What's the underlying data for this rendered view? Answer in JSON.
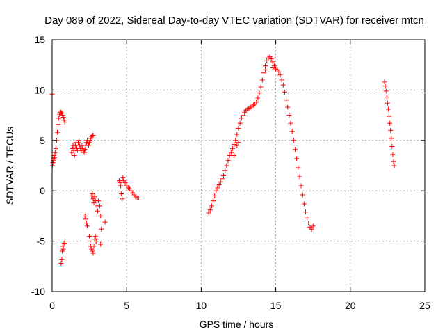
{
  "chart_data": {
    "type": "scatter",
    "title": "Day 089 of 2022, Sidereal Day-to-day VTEC variation (SDTVAR) for receiver mtcn",
    "xlabel": "GPS time / hours",
    "ylabel": "SDTVAR / TECUs",
    "xlim": [
      0,
      25
    ],
    "ylim": [
      -10,
      15
    ],
    "xticks": [
      0,
      5,
      10,
      15,
      20,
      25
    ],
    "yticks": [
      -10,
      -5,
      0,
      5,
      10,
      15
    ],
    "xtick_labels": [
      "0",
      "5",
      "10",
      "15",
      "20",
      "25"
    ],
    "ytick_labels": [
      "-10",
      "-5",
      "0",
      "5",
      "10",
      "15"
    ],
    "grid": true,
    "marker": "+",
    "color": "#ff0000",
    "series": [
      {
        "name": "SDTVAR",
        "points": [
          [
            0.0,
            9.6
          ],
          [
            0.02,
            2.5
          ],
          [
            0.05,
            2.8
          ],
          [
            0.08,
            3.0
          ],
          [
            0.1,
            3.2
          ],
          [
            0.13,
            3.5
          ],
          [
            0.16,
            3.3
          ],
          [
            0.2,
            3.8
          ],
          [
            0.25,
            4.2
          ],
          [
            0.3,
            5.0
          ],
          [
            0.35,
            5.8
          ],
          [
            0.4,
            6.6
          ],
          [
            0.45,
            7.2
          ],
          [
            0.5,
            7.6
          ],
          [
            0.55,
            7.8
          ],
          [
            0.6,
            7.8
          ],
          [
            0.65,
            7.7
          ],
          [
            0.7,
            7.5
          ],
          [
            0.75,
            7.3
          ],
          [
            0.8,
            7.0
          ],
          [
            0.85,
            6.8
          ],
          [
            0.6,
            -7.2
          ],
          [
            0.65,
            -6.8
          ],
          [
            0.68,
            -6.0
          ],
          [
            0.72,
            -5.5
          ],
          [
            0.75,
            -5.8
          ],
          [
            0.8,
            -5.2
          ],
          [
            0.85,
            -5.0
          ],
          [
            1.3,
            3.8
          ],
          [
            1.35,
            4.2
          ],
          [
            1.4,
            4.5
          ],
          [
            1.45,
            4.0
          ],
          [
            1.5,
            3.5
          ],
          [
            1.55,
            4.5
          ],
          [
            1.6,
            4.8
          ],
          [
            1.65,
            4.2
          ],
          [
            1.7,
            4.0
          ],
          [
            1.75,
            4.8
          ],
          [
            1.8,
            5.0
          ],
          [
            1.85,
            4.5
          ],
          [
            1.9,
            4.2
          ],
          [
            1.95,
            4.0
          ],
          [
            2.0,
            4.5
          ],
          [
            2.05,
            4.2
          ],
          [
            2.1,
            4.0
          ],
          [
            2.15,
            3.8
          ],
          [
            2.2,
            4.1
          ],
          [
            2.25,
            4.5
          ],
          [
            2.3,
            4.8
          ],
          [
            2.35,
            5.0
          ],
          [
            2.4,
            4.7
          ],
          [
            2.45,
            4.5
          ],
          [
            2.5,
            4.8
          ],
          [
            2.55,
            5.0
          ],
          [
            2.6,
            5.2
          ],
          [
            2.65,
            5.4
          ],
          [
            2.7,
            5.5
          ],
          [
            2.75,
            5.5
          ],
          [
            2.2,
            -2.5
          ],
          [
            2.25,
            -2.8
          ],
          [
            2.3,
            -3.2
          ],
          [
            2.35,
            -3.5
          ],
          [
            2.5,
            -4.5
          ],
          [
            2.55,
            -5.0
          ],
          [
            2.6,
            -5.5
          ],
          [
            2.65,
            -5.8
          ],
          [
            2.7,
            -6.0
          ],
          [
            2.75,
            -6.2
          ],
          [
            2.8,
            -5.5
          ],
          [
            2.85,
            -4.8
          ],
          [
            2.9,
            -4.5
          ],
          [
            2.95,
            -5.0
          ],
          [
            3.0,
            -4.8
          ],
          [
            2.65,
            -0.5
          ],
          [
            2.7,
            -0.3
          ],
          [
            2.75,
            -0.8
          ],
          [
            2.8,
            -1.2
          ],
          [
            2.85,
            -0.6
          ],
          [
            2.9,
            -1.0
          ],
          [
            3.0,
            -1.5
          ],
          [
            3.05,
            -2.0
          ],
          [
            3.1,
            -1.0
          ],
          [
            3.2,
            -1.5
          ],
          [
            3.25,
            -2.5
          ],
          [
            3.3,
            -3.8
          ],
          [
            3.25,
            -5.3
          ],
          [
            3.55,
            -3.1
          ],
          [
            4.5,
            1.0
          ],
          [
            4.55,
            0.8
          ],
          [
            4.6,
            0.5
          ],
          [
            4.65,
            -0.3
          ],
          [
            4.7,
            -0.8
          ],
          [
            4.75,
            1.3
          ],
          [
            4.8,
            1.0
          ],
          [
            4.9,
            0.8
          ],
          [
            5.0,
            0.5
          ],
          [
            5.1,
            0.3
          ],
          [
            5.2,
            0.2
          ],
          [
            5.3,
            0.0
          ],
          [
            5.4,
            -0.2
          ],
          [
            5.5,
            -0.4
          ],
          [
            5.6,
            -0.6
          ],
          [
            5.7,
            -0.7
          ],
          [
            5.8,
            -0.7
          ],
          [
            10.5,
            -2.2
          ],
          [
            10.6,
            -1.9
          ],
          [
            10.7,
            -1.5
          ],
          [
            10.8,
            -1.0
          ],
          [
            10.9,
            -0.5
          ],
          [
            11.0,
            0.0
          ],
          [
            11.1,
            0.3
          ],
          [
            11.2,
            0.6
          ],
          [
            11.3,
            0.9
          ],
          [
            11.4,
            1.2
          ],
          [
            11.5,
            1.5
          ],
          [
            11.6,
            2.0
          ],
          [
            11.7,
            2.5
          ],
          [
            11.8,
            3.0
          ],
          [
            11.9,
            3.5
          ],
          [
            12.0,
            3.8
          ],
          [
            12.1,
            4.2
          ],
          [
            12.2,
            4.6
          ],
          [
            12.3,
            5.0
          ],
          [
            12.4,
            5.6
          ],
          [
            12.5,
            6.2
          ],
          [
            12.6,
            6.7
          ],
          [
            12.7,
            7.2
          ],
          [
            12.8,
            7.5
          ],
          [
            12.9,
            7.8
          ],
          [
            13.0,
            8.0
          ],
          [
            13.1,
            8.1
          ],
          [
            13.2,
            8.2
          ],
          [
            13.3,
            8.3
          ],
          [
            13.4,
            8.4
          ],
          [
            13.5,
            8.5
          ],
          [
            13.6,
            8.6
          ],
          [
            13.7,
            8.8
          ],
          [
            13.8,
            9.2
          ],
          [
            13.9,
            9.7
          ],
          [
            14.0,
            10.3
          ],
          [
            14.1,
            11.0
          ],
          [
            14.2,
            11.7
          ],
          [
            14.3,
            12.4
          ],
          [
            14.4,
            12.9
          ],
          [
            14.5,
            13.2
          ],
          [
            14.6,
            13.3
          ],
          [
            14.7,
            13.1
          ],
          [
            14.8,
            12.8
          ],
          [
            14.9,
            12.4
          ],
          [
            15.0,
            12.1
          ],
          [
            15.1,
            12.0
          ],
          [
            15.2,
            11.8
          ],
          [
            15.3,
            11.5
          ],
          [
            15.4,
            11.0
          ],
          [
            15.5,
            10.5
          ],
          [
            15.6,
            9.8
          ],
          [
            15.7,
            9.0
          ],
          [
            15.8,
            8.3
          ],
          [
            15.9,
            7.5
          ],
          [
            16.0,
            6.7
          ],
          [
            16.1,
            5.9
          ],
          [
            16.2,
            5.0
          ],
          [
            16.3,
            4.1
          ],
          [
            16.4,
            3.2
          ],
          [
            16.5,
            2.3
          ],
          [
            16.6,
            1.4
          ],
          [
            16.7,
            0.5
          ],
          [
            16.8,
            -0.4
          ],
          [
            16.9,
            -1.3
          ],
          [
            17.0,
            -2.1
          ],
          [
            17.1,
            -2.7
          ],
          [
            17.2,
            -3.2
          ],
          [
            17.3,
            -3.6
          ],
          [
            17.4,
            -3.8
          ],
          [
            17.5,
            -3.5
          ],
          [
            12.2,
            3.5
          ],
          [
            12.4,
            4.5
          ],
          [
            12.5,
            4.8
          ],
          [
            14.3,
            12.0
          ],
          [
            14.8,
            12.2
          ],
          [
            22.3,
            10.8
          ],
          [
            22.35,
            10.4
          ],
          [
            22.4,
            9.9
          ],
          [
            22.45,
            9.3
          ],
          [
            22.5,
            8.7
          ],
          [
            22.55,
            8.1
          ],
          [
            22.6,
            7.4
          ],
          [
            22.65,
            6.7
          ],
          [
            22.7,
            6.0
          ],
          [
            22.75,
            5.2
          ],
          [
            22.8,
            4.4
          ],
          [
            22.85,
            3.6
          ],
          [
            22.9,
            2.9
          ],
          [
            22.95,
            2.5
          ]
        ]
      }
    ]
  }
}
